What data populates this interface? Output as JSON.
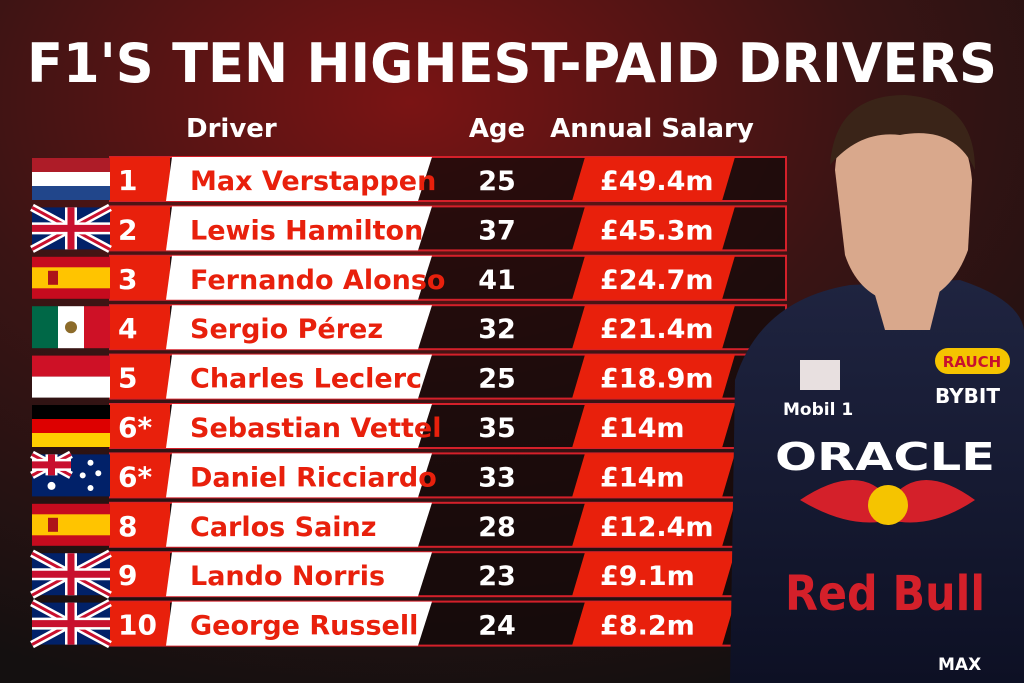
{
  "header": {
    "title": "F1'S TEN HIGHEST-PAID DRIVERS"
  },
  "table": {
    "columns": [
      "Driver",
      "Age",
      "Annual Salary"
    ],
    "rows": [
      [
        "1",
        "Max Verstappen",
        25,
        "£49.4m"
      ],
      [
        "2",
        "Lewis Hamilton",
        37,
        "£45.3m"
      ],
      [
        "3",
        "Fernando Alonso",
        41,
        "£24.7m"
      ],
      [
        "4",
        "Sergio Pérez",
        32,
        "£21.4m"
      ],
      [
        "5",
        "Charles Leclerc",
        25,
        "£18.9m"
      ],
      [
        "6*",
        "Sebastian Vettel",
        35,
        "£14m"
      ],
      [
        "6*",
        "Daniel Ricciardo",
        33,
        "£14m"
      ],
      [
        "8",
        "Carlos Sainz",
        28,
        "£12.4m"
      ],
      [
        "9",
        "Lando Norris",
        23,
        "£9.1m"
      ],
      [
        "10",
        "George Russell",
        24,
        "£8.2m"
      ]
    ]
  },
  "photo": {
    "logos": [
      "ORACLE",
      "Red Bull",
      "Mobil 1",
      "BYBIT",
      "RAUCH",
      "MAX"
    ]
  }
}
